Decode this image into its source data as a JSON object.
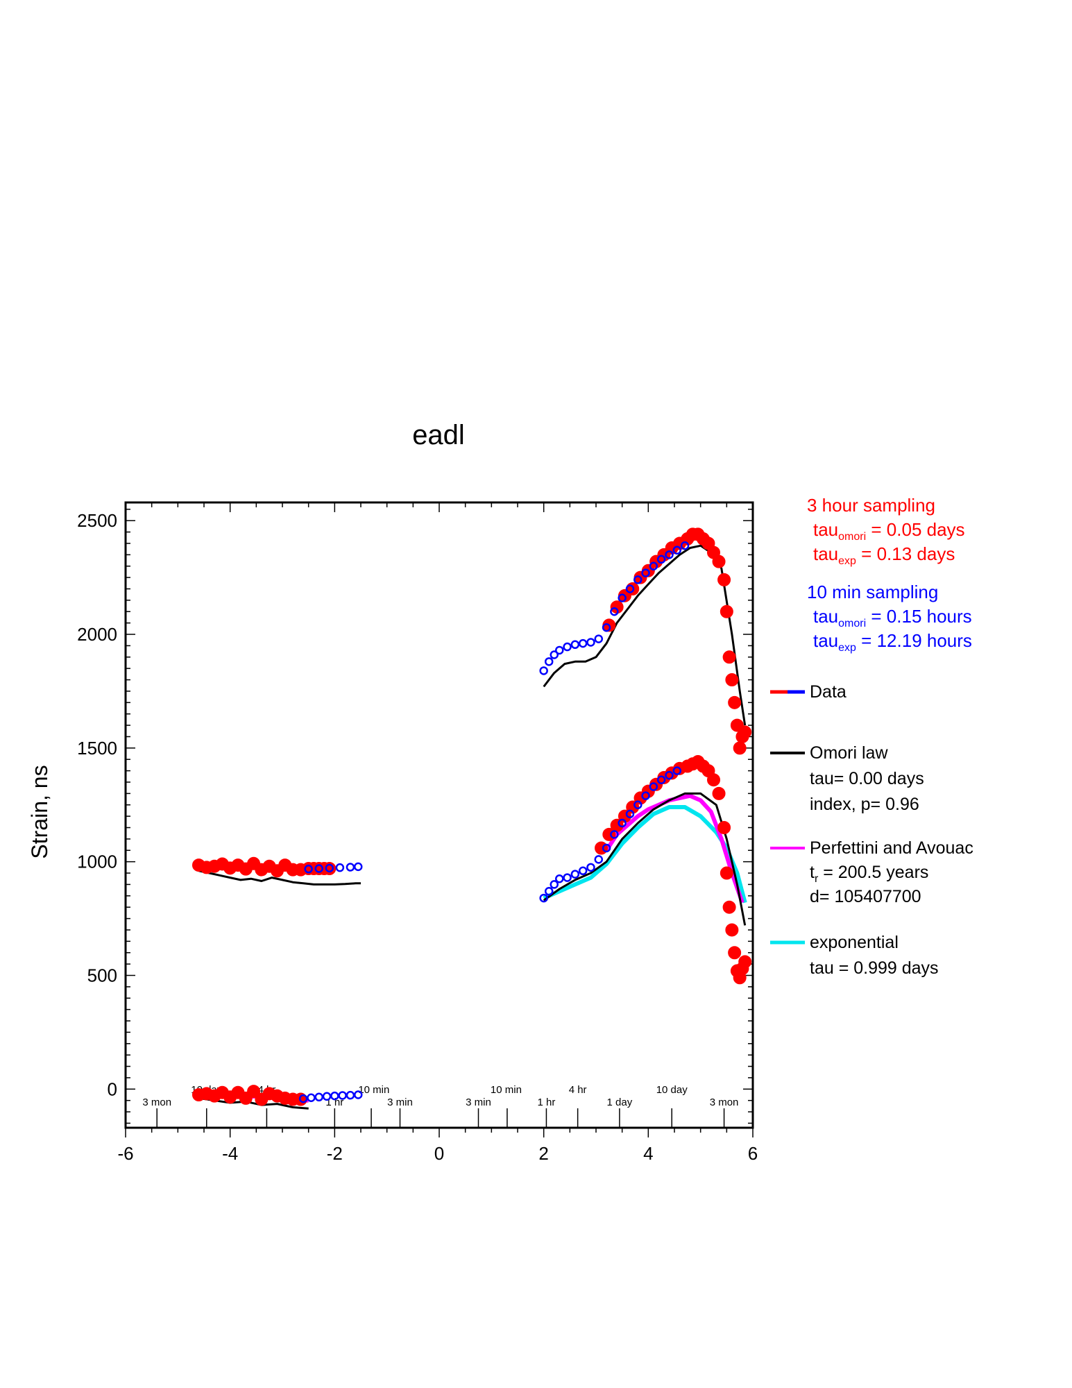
{
  "chart_data": {
    "type": "scatter",
    "title": "eadl",
    "ylabel": "Strain, ns",
    "xlabel": "",
    "xlim": [
      -6,
      6
    ],
    "ylim": [
      -170,
      2580
    ],
    "x_ticks": [
      -6,
      -4,
      -2,
      0,
      2,
      4,
      6
    ],
    "y_ticks": [
      0,
      500,
      1000,
      1500,
      2000,
      2500
    ],
    "time_labels": [
      {
        "x": -5.4,
        "row": "low",
        "text": "3 mon"
      },
      {
        "x": -4.45,
        "row": "high",
        "text": "10 day"
      },
      {
        "x": -3.3,
        "row": "high",
        "text": "4 hr"
      },
      {
        "x": -2.0,
        "row": "low",
        "text": "1 hr"
      },
      {
        "x": -1.25,
        "row": "high",
        "text": "10 min"
      },
      {
        "x": -0.75,
        "row": "low",
        "text": "3 min"
      },
      {
        "x": 0.75,
        "row": "low",
        "text": "3 min"
      },
      {
        "x": 1.28,
        "row": "high",
        "text": "10 min"
      },
      {
        "x": 2.05,
        "row": "low",
        "text": "1 hr"
      },
      {
        "x": 2.65,
        "row": "high",
        "text": "4 hr"
      },
      {
        "x": 3.45,
        "row": "low",
        "text": "1 day"
      },
      {
        "x": 4.45,
        "row": "high",
        "text": "10 day"
      },
      {
        "x": 5.45,
        "row": "low",
        "text": "3 mon"
      }
    ],
    "time_ticks": [
      -5.4,
      -4.45,
      -3.3,
      -2.0,
      -1.3,
      -0.75,
      0.75,
      1.3,
      2.05,
      2.65,
      3.45,
      4.45,
      5.45
    ],
    "series": [
      {
        "group": "top-3hr",
        "color": "#ff0000",
        "x": [
          -4.6,
          -4.45,
          -4.3,
          -4.15,
          -4.0,
          -3.85,
          -3.7,
          -3.55,
          -3.4,
          -3.25,
          -3.1,
          -2.95,
          -2.8,
          -2.65,
          -2.5,
          -2.4,
          -2.3,
          -2.2,
          -2.1,
          3.25,
          3.4,
          3.55,
          3.7,
          3.85,
          4.0,
          4.15,
          4.3,
          4.45,
          4.6,
          4.75,
          4.85,
          4.95,
          5.05,
          5.15,
          5.25,
          5.35,
          5.45,
          5.5,
          5.55,
          5.6,
          5.65,
          5.7,
          5.75,
          5.8,
          5.85
        ],
        "y": [
          985,
          975,
          980,
          990,
          972,
          985,
          968,
          992,
          965,
          980,
          960,
          985,
          965,
          965,
          970,
          970,
          970,
          970,
          970,
          2040,
          2120,
          2170,
          2200,
          2250,
          2280,
          2320,
          2350,
          2380,
          2400,
          2420,
          2440,
          2440,
          2420,
          2400,
          2360,
          2320,
          2240,
          2100,
          1900,
          1800,
          1700,
          1600,
          1500,
          1550,
          1570
        ]
      },
      {
        "group": "top-10min",
        "color": "#0000ff",
        "x": [
          -2.5,
          -2.3,
          -2.1,
          -1.9,
          -1.7,
          -1.55,
          2.0,
          2.1,
          2.2,
          2.3,
          2.45,
          2.6,
          2.75,
          2.9,
          3.05,
          3.2,
          3.35,
          3.5,
          3.65,
          3.8,
          3.95,
          4.1,
          4.25,
          4.4,
          4.55,
          4.7
        ],
        "y": [
          968,
          970,
          972,
          974,
          976,
          978,
          1840,
          1880,
          1910,
          1930,
          1945,
          1955,
          1960,
          1965,
          1980,
          2030,
          2100,
          2160,
          2200,
          2240,
          2270,
          2300,
          2330,
          2350,
          2370,
          2390
        ]
      },
      {
        "group": "top-model",
        "color": "#000000",
        "x": [
          -4.6,
          -4.4,
          -4.2,
          -4.0,
          -3.8,
          -3.6,
          -3.4,
          -3.2,
          -3.0,
          -2.8,
          -2.6,
          -2.4,
          -2.2,
          -2.0,
          -1.8,
          -1.6,
          -1.5,
          2.0,
          2.2,
          2.4,
          2.6,
          2.8,
          3.0,
          3.2,
          3.4,
          3.6,
          3.8,
          4.0,
          4.2,
          4.4,
          4.6,
          4.8,
          5.0,
          5.2,
          5.4,
          5.6,
          5.75,
          5.85
        ],
        "y": [
          960,
          950,
          940,
          930,
          920,
          925,
          915,
          930,
          920,
          910,
          905,
          900,
          900,
          900,
          902,
          905,
          905,
          1770,
          1830,
          1870,
          1880,
          1880,
          1900,
          1960,
          2050,
          2110,
          2170,
          2220,
          2270,
          2310,
          2350,
          2380,
          2390,
          2360,
          2290,
          2000,
          1750,
          1600
        ]
      },
      {
        "group": "bottom-3hr",
        "color": "#ff0000",
        "x": [
          -4.6,
          -4.45,
          -4.3,
          -4.15,
          -4.0,
          -3.85,
          -3.7,
          -3.55,
          -3.4,
          -3.25,
          -3.1,
          -2.95,
          -2.8,
          -2.65,
          3.1,
          3.25,
          3.4,
          3.55,
          3.7,
          3.85,
          4.0,
          4.15,
          4.3,
          4.45,
          4.6,
          4.75,
          4.85,
          4.95,
          5.05,
          5.15,
          5.25,
          5.35,
          5.45,
          5.5,
          5.55,
          5.6,
          5.65,
          5.7,
          5.75,
          5.8,
          5.85
        ],
        "y": [
          -25,
          -20,
          -30,
          -15,
          -35,
          -15,
          -40,
          -10,
          -45,
          -20,
          -30,
          -40,
          -45,
          -45,
          1060,
          1120,
          1160,
          1200,
          1240,
          1280,
          1310,
          1340,
          1370,
          1390,
          1410,
          1420,
          1430,
          1440,
          1420,
          1400,
          1360,
          1300,
          1150,
          950,
          800,
          700,
          600,
          520,
          490,
          530,
          560
        ]
      },
      {
        "group": "bottom-10min",
        "color": "#0000ff",
        "x": [
          -2.6,
          -2.45,
          -2.3,
          -2.15,
          -2.0,
          -1.85,
          -1.7,
          -1.55,
          2.0,
          2.1,
          2.2,
          2.3,
          2.45,
          2.6,
          2.75,
          2.9,
          3.05,
          3.2,
          3.35,
          3.5,
          3.65,
          3.8,
          3.95,
          4.1,
          4.25,
          4.4,
          4.55
        ],
        "y": [
          -42,
          -38,
          -35,
          -32,
          -30,
          -28,
          -27,
          -25,
          840,
          870,
          900,
          925,
          930,
          945,
          960,
          975,
          1010,
          1060,
          1120,
          1170,
          1210,
          1250,
          1290,
          1330,
          1360,
          1380,
          1400
        ]
      },
      {
        "group": "bottom-omori",
        "color": "#000000",
        "x": [
          -4.6,
          -4.3,
          -4.0,
          -3.7,
          -3.4,
          -3.1,
          -2.8,
          -2.5,
          2.0,
          2.3,
          2.6,
          2.9,
          3.2,
          3.5,
          3.8,
          4.1,
          4.4,
          4.7,
          5.0,
          5.3,
          5.5,
          5.7,
          5.85
        ],
        "y": [
          -40,
          -50,
          -60,
          -55,
          -70,
          -65,
          -80,
          -85,
          830,
          880,
          920,
          950,
          1000,
          1100,
          1170,
          1230,
          1270,
          1300,
          1300,
          1250,
          1100,
          900,
          720
        ]
      },
      {
        "group": "bottom-perfettini",
        "color": "#ff00ff",
        "x": [
          -4.6,
          -4.3,
          -4.0,
          -3.7,
          -3.4,
          -3.1,
          -2.8,
          -2.5,
          3.2,
          3.4,
          3.6,
          3.8,
          4.0,
          4.2,
          4.4,
          4.6,
          4.8,
          5.0,
          5.2,
          5.4,
          5.6,
          5.8
        ],
        "y": [
          -20,
          -30,
          -25,
          -35,
          -30,
          -40,
          -45,
          -50,
          1050,
          1120,
          1160,
          1200,
          1230,
          1250,
          1270,
          1280,
          1290,
          1270,
          1220,
          1100,
          950,
          820
        ]
      },
      {
        "group": "bottom-exponential",
        "color": "#00e5ee",
        "x": [
          2.0,
          2.3,
          2.6,
          2.9,
          3.2,
          3.5,
          3.8,
          4.1,
          4.4,
          4.7,
          5.0,
          5.3,
          5.5,
          5.7,
          5.85
        ],
        "y": [
          840,
          870,
          900,
          930,
          990,
          1080,
          1150,
          1210,
          1240,
          1240,
          1200,
          1130,
          1060,
          950,
          820
        ]
      }
    ]
  },
  "annotations": {
    "red_block": {
      "color": "#ff0000",
      "line1": "3 hour sampling",
      "omori_prefix": "tau",
      "omori_sub": "omori",
      "omori_value": " = 0.05 days",
      "exp_prefix": "tau",
      "exp_sub": "exp",
      "exp_value": " = 0.13 days"
    },
    "blue_block": {
      "color": "#0000ff",
      "line1": "10 min sampling",
      "omori_prefix": "tau",
      "omori_sub": "omori",
      "omori_value": " = 0.15 hours",
      "exp_prefix": "tau",
      "exp_sub": "exp",
      "exp_value": " = 12.19 hours"
    }
  },
  "legend": {
    "data": {
      "label": "Data",
      "colors": [
        "#ff0000",
        "#0000ff"
      ]
    },
    "omori": {
      "label": "Omori law",
      "line2": "tau= 0.00 days",
      "line3": "index, p= 0.96",
      "color": "#000000"
    },
    "perfettini": {
      "label": "Perfettini and Avouac",
      "line2_prefix": "t",
      "line2_sub": "r",
      "line2_value": " = 200.5 years",
      "line3": "d= 105407700",
      "color": "#ff00ff"
    },
    "exponential": {
      "label": "exponential",
      "line2": "tau = 0.999 days",
      "color": "#00e5ee"
    }
  }
}
